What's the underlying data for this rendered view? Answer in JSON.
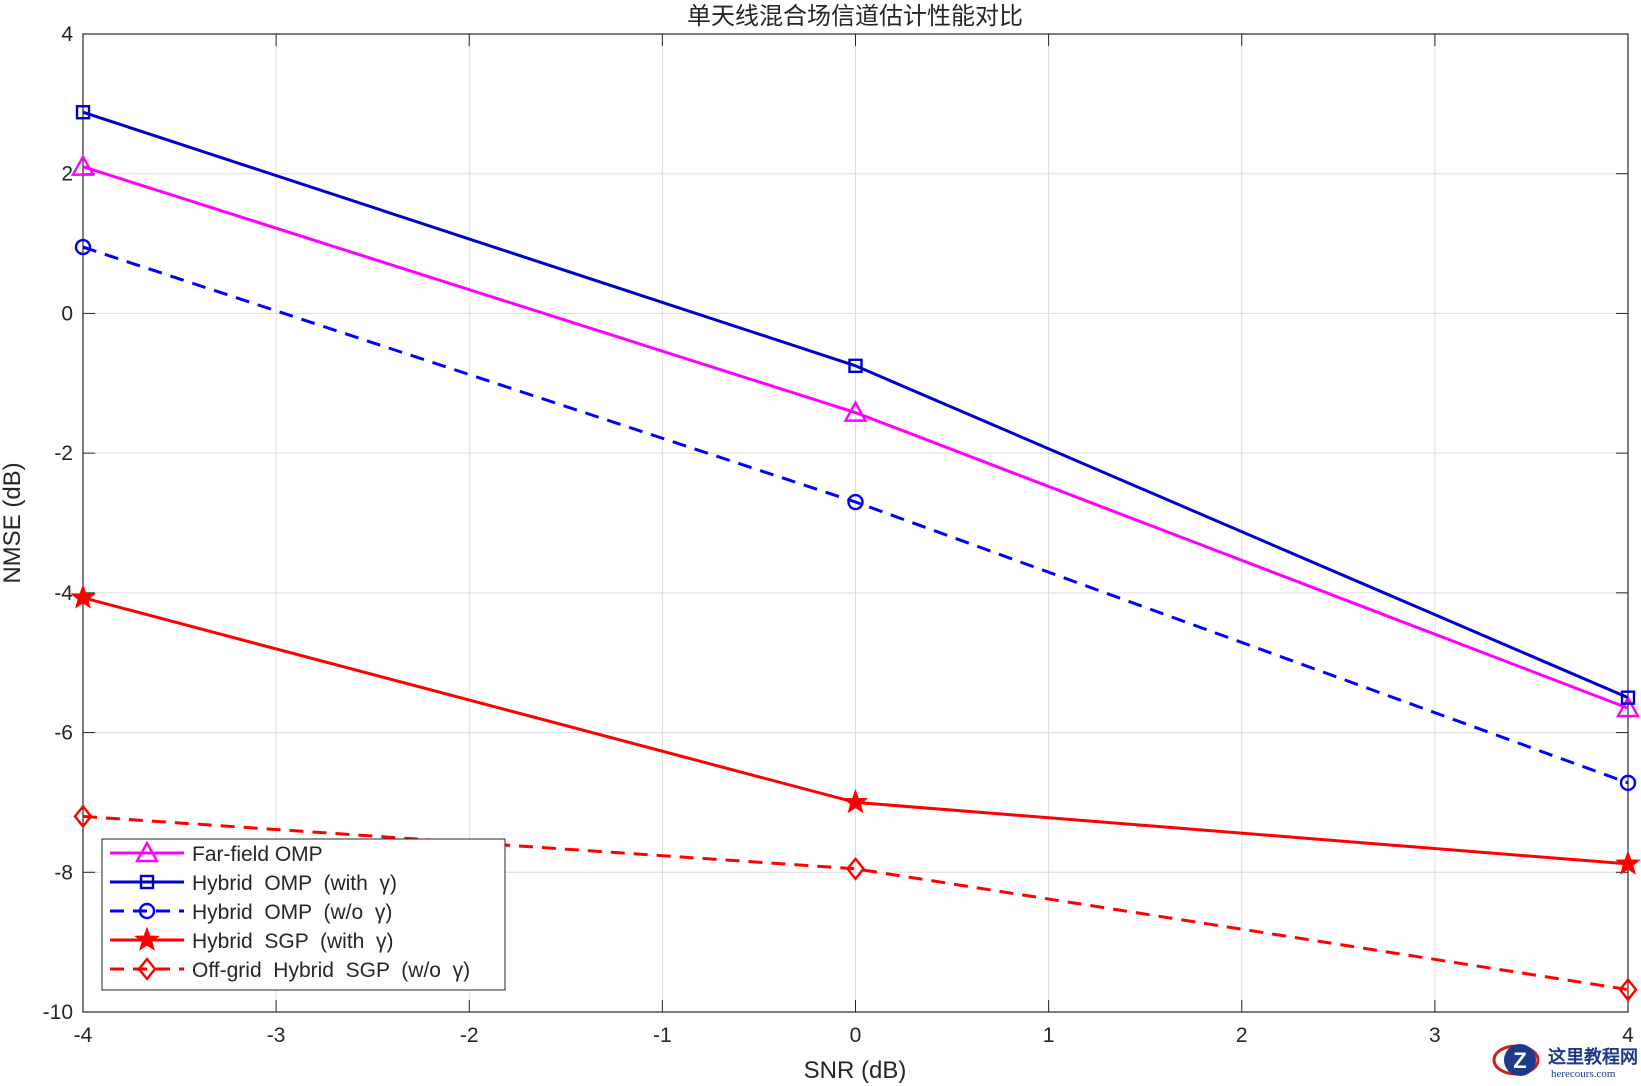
{
  "chart_data": {
    "type": "line",
    "title": "单天线混合场信道估计性能对比",
    "xlabel": "SNR (dB)",
    "ylabel": "NMSE (dB)",
    "xlim": [
      -4,
      4
    ],
    "ylim": [
      -10,
      4
    ],
    "xticks": [
      -4,
      -3,
      -2,
      -1,
      0,
      1,
      2,
      3,
      4
    ],
    "yticks": [
      -10,
      -8,
      -6,
      -4,
      -2,
      0,
      2,
      4
    ],
    "grid": true,
    "legend_position": "bottom-left",
    "x": [
      -4,
      0,
      4
    ],
    "series": [
      {
        "name": "Far-field OMP",
        "values": [
          2.1,
          -1.42,
          -5.65
        ],
        "color": "#ff00ff",
        "dash": "solid",
        "marker": "triangle"
      },
      {
        "name": "Hybrid  OMP  (with  γ)",
        "values": [
          2.88,
          -0.75,
          -5.5
        ],
        "color": "#0000cd",
        "dash": "solid",
        "marker": "square"
      },
      {
        "name": "Hybrid  OMP  (w/o  γ)",
        "values": [
          0.95,
          -2.7,
          -6.72
        ],
        "color": "#0000ff",
        "dash": "dashed",
        "marker": "circle"
      },
      {
        "name": "Hybrid  SGP  (with  γ)",
        "values": [
          -4.07,
          -7.0,
          -7.88
        ],
        "color": "#ff0000",
        "dash": "solid",
        "marker": "star"
      },
      {
        "name": "Off-grid  Hybrid  SGP  (w/o  γ)",
        "values": [
          -7.2,
          -7.95,
          -9.68
        ],
        "color": "#ff0000",
        "dash": "dashed",
        "marker": "diamond"
      }
    ]
  },
  "watermark": {
    "text_cn": "这里教程网",
    "text_en": "herecours.com",
    "color": "#1e3a8a"
  }
}
